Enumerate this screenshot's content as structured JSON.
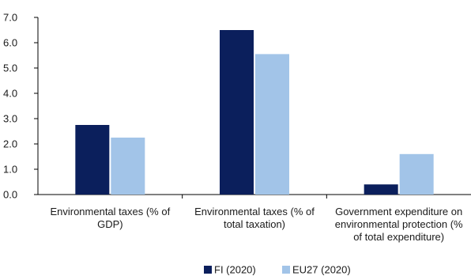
{
  "chart_data": {
    "type": "bar",
    "categories": [
      [
        "Environmental taxes (% of",
        "GDP)"
      ],
      [
        "Environmental taxes (% of",
        "total taxation)"
      ],
      [
        "Government expenditure on",
        "environmental protection (%",
        "of total expenditure)"
      ]
    ],
    "series": [
      {
        "name": "FI (2020)",
        "color": "#0b1f5c",
        "values": [
          2.75,
          6.5,
          0.4
        ]
      },
      {
        "name": "EU27 (2020)",
        "color": "#a2c4e8",
        "values": [
          2.25,
          5.55,
          1.6
        ]
      }
    ],
    "ylim": [
      0,
      7
    ],
    "yticks": [
      "0.0",
      "1.0",
      "2.0",
      "3.0",
      "4.0",
      "5.0",
      "6.0",
      "7.0"
    ],
    "grid": false,
    "legend": "bottom-center"
  }
}
